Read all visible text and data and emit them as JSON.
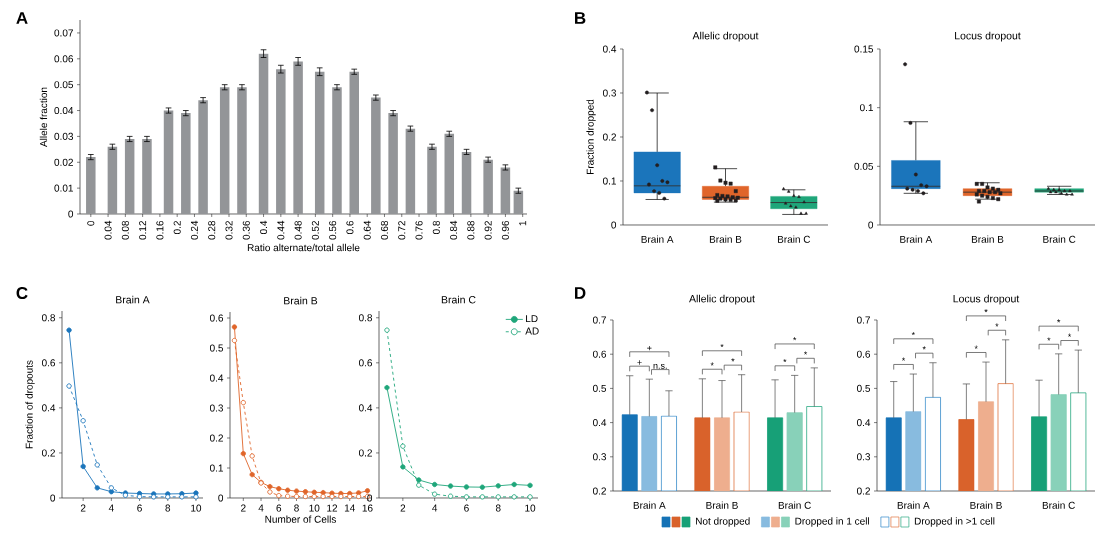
{
  "chart_data": [
    {
      "type": "bar",
      "annotations": [
        "A"
      ],
      "xlabel": "Ratio alternate/total allele",
      "ylabel": "Allele fraction",
      "color": "#939598",
      "x": [
        0,
        0.05,
        0.09,
        0.13,
        0.18,
        0.22,
        0.26,
        0.31,
        0.35,
        0.4,
        0.44,
        0.48,
        0.53,
        0.57,
        0.61,
        0.66,
        0.7,
        0.74,
        0.79,
        0.83,
        0.87,
        0.92,
        0.96,
        0.99
      ],
      "values": [
        0.022,
        0.026,
        0.029,
        0.029,
        0.04,
        0.039,
        0.044,
        0.049,
        0.049,
        0.062,
        0.056,
        0.059,
        0.055,
        0.049,
        0.055,
        0.045,
        0.039,
        0.033,
        0.026,
        0.031,
        0.024,
        0.021,
        0.018,
        0.009
      ],
      "errors": [
        0.001,
        0.001,
        0.001,
        0.001,
        0.001,
        0.001,
        0.001,
        0.001,
        0.001,
        0.0015,
        0.0015,
        0.0015,
        0.0015,
        0.001,
        0.001,
        0.001,
        0.001,
        0.001,
        0.001,
        0.001,
        0.001,
        0.001,
        0.001,
        0.001
      ],
      "xlim": [
        -0.025,
        1.01
      ],
      "ylim": [
        0,
        0.075
      ],
      "xticks": [
        0,
        0.04,
        0.08,
        0.12,
        0.16,
        0.2,
        0.24,
        0.28,
        0.32,
        0.36,
        0.4,
        0.44,
        0.48,
        0.52,
        0.56,
        0.6,
        0.64,
        0.68,
        0.72,
        0.76,
        0.8,
        0.84,
        0.88,
        0.92,
        0.96,
        1
      ],
      "yticks": [
        0,
        0.01,
        0.02,
        0.03,
        0.04,
        0.05,
        0.06,
        0.07
      ]
    },
    {
      "type": "box",
      "annotations": [
        "B"
      ],
      "title": "Allelic dropout",
      "ylabel": "Fraction dropped",
      "categories": [
        "Brain A",
        "Brain B",
        "Brain C"
      ],
      "colors": [
        "#1b75bb",
        "#e0652a",
        "#1fa67a"
      ],
      "boxes": [
        {
          "low": 0.058,
          "q1": 0.073,
          "median": 0.089,
          "q3": 0.166,
          "high": 0.3
        },
        {
          "low": 0.052,
          "q1": 0.058,
          "median": 0.063,
          "q3": 0.088,
          "high": 0.128
        },
        {
          "low": 0.024,
          "q1": 0.037,
          "median": 0.051,
          "q3": 0.065,
          "high": 0.08
        }
      ],
      "ylim": [
        0,
        0.4
      ],
      "yticks": [
        0,
        0.1,
        0.2,
        0.3,
        0.4
      ],
      "series": [
        {
          "type": "scatter",
          "marker": "circle",
          "color": "#231f20",
          "x": [
            "Brain A",
            "Brain A",
            "Brain A",
            "Brain A",
            "Brain A",
            "Brain A",
            "Brain A",
            "Brain A",
            "Brain A"
          ],
          "values": [
            0.301,
            0.261,
            0.136,
            0.1,
            0.097,
            0.092,
            0.077,
            0.073,
            0.06
          ]
        },
        {
          "type": "scatter",
          "marker": "square",
          "color": "#231f20",
          "x": [
            "Brain B",
            "Brain B",
            "Brain B",
            "Brain B",
            "Brain B",
            "Brain B",
            "Brain B",
            "Brain B",
            "Brain B",
            "Brain B",
            "Brain B",
            "Brain B",
            "Brain B",
            "Brain B",
            "Brain B",
            "Brain B"
          ],
          "values": [
            0.131,
            0.101,
            0.096,
            0.094,
            0.077,
            0.068,
            0.066,
            0.065,
            0.063,
            0.062,
            0.061,
            0.06,
            0.058,
            0.057,
            0.056,
            0.055
          ]
        },
        {
          "type": "scatter",
          "marker": "triangle",
          "color": "#231f20",
          "x": [
            "Brain C",
            "Brain C",
            "Brain C",
            "Brain C",
            "Brain C",
            "Brain C",
            "Brain C",
            "Brain C",
            "Brain C",
            "Brain C"
          ],
          "values": [
            0.082,
            0.076,
            0.066,
            0.064,
            0.052,
            0.049,
            0.043,
            0.04,
            0.026,
            0.026
          ]
        }
      ]
    },
    {
      "type": "box",
      "title": "Locus dropout",
      "categories": [
        "Brain A",
        "Brain B",
        "Brain C"
      ],
      "colors": [
        "#1b75bb",
        "#e0652a",
        "#1fa67a"
      ],
      "boxes": [
        {
          "low": 0.027,
          "q1": 0.031,
          "median": 0.033,
          "q3": 0.055,
          "high": 0.088
        },
        {
          "low": 0.022,
          "q1": 0.025,
          "median": 0.028,
          "q3": 0.031,
          "high": 0.036
        },
        {
          "low": 0.026,
          "q1": 0.028,
          "median": 0.029,
          "q3": 0.031,
          "high": 0.033
        }
      ],
      "ylim": [
        0,
        0.15
      ],
      "yticks": [
        0,
        0.05,
        0.1,
        0.15
      ],
      "series": [
        {
          "type": "scatter",
          "marker": "circle",
          "color": "#231f20",
          "x": [
            "Brain A",
            "Brain A",
            "Brain A",
            "Brain A",
            "Brain A",
            "Brain A",
            "Brain A",
            "Brain A",
            "Brain A"
          ],
          "values": [
            0.137,
            0.087,
            0.043,
            0.034,
            0.033,
            0.031,
            0.03,
            0.029,
            0.027
          ]
        },
        {
          "type": "scatter",
          "marker": "square",
          "color": "#231f20",
          "x": [
            "Brain B",
            "Brain B",
            "Brain B",
            "Brain B",
            "Brain B",
            "Brain B",
            "Brain B",
            "Brain B",
            "Brain B",
            "Brain B",
            "Brain B",
            "Brain B",
            "Brain B",
            "Brain B",
            "Brain B",
            "Brain B"
          ],
          "values": [
            0.035,
            0.035,
            0.032,
            0.031,
            0.03,
            0.029,
            0.029,
            0.028,
            0.028,
            0.027,
            0.026,
            0.025,
            0.024,
            0.023,
            0.022,
            0.02
          ]
        },
        {
          "type": "scatter",
          "marker": "triangle",
          "color": "#231f20",
          "x": [
            "Brain C",
            "Brain C",
            "Brain C",
            "Brain C",
            "Brain C",
            "Brain C",
            "Brain C",
            "Brain C",
            "Brain C",
            "Brain C"
          ],
          "values": [
            0.031,
            0.03,
            0.03,
            0.029,
            0.029,
            0.028,
            0.028,
            0.027,
            0.026,
            0.026
          ]
        }
      ]
    },
    {
      "type": "line",
      "annotations": [
        "C"
      ],
      "title": "Brain A",
      "ylabel": "Fraction of dropouts",
      "x": [
        1,
        2,
        3,
        4,
        5,
        6,
        7,
        8,
        9,
        10
      ],
      "series": [
        {
          "color": "#1b75bb",
          "marker": "circle",
          "line_style": "solid",
          "values": [
            0.745,
            0.14,
            0.045,
            0.028,
            0.022,
            0.02,
            0.018,
            0.018,
            0.019,
            0.022
          ]
        },
        {
          "color": "#1b75bb",
          "marker": "circle",
          "line_style": "dashed",
          "values": [
            0.497,
            0.343,
            0.147,
            0.045,
            0.012,
            0.006,
            0.005,
            0.005,
            0.005,
            0.005
          ]
        }
      ],
      "xlim": [
        0.5,
        10.5
      ],
      "ylim": [
        0,
        0.83
      ],
      "xticks": [
        2,
        4,
        6,
        8,
        10
      ],
      "yticks": [
        0,
        0.2,
        0.4,
        0.6,
        0.8
      ]
    },
    {
      "type": "line",
      "title": "Brain B",
      "xlabel": "Number of Cells",
      "x": [
        1,
        2,
        3,
        4,
        5,
        6,
        7,
        8,
        9,
        10,
        11,
        12,
        13,
        14,
        15,
        16
      ],
      "series": [
        {
          "color": "#e0652a",
          "marker": "circle",
          "line_style": "solid",
          "values": [
            0.57,
            0.148,
            0.078,
            0.052,
            0.038,
            0.031,
            0.026,
            0.023,
            0.021,
            0.019,
            0.018,
            0.016,
            0.015,
            0.015,
            0.017,
            0.024
          ]
        },
        {
          "color": "#e0652a",
          "marker": "circle",
          "line_style": "dashed",
          "values": [
            0.525,
            0.318,
            0.14,
            0.05,
            0.02,
            0.008,
            0.006,
            0.005,
            0.005,
            0.005,
            0.005,
            0.005,
            0.005,
            0.005,
            0.005,
            0.005
          ]
        }
      ],
      "xlim": [
        0.5,
        16.4
      ],
      "ylim": [
        0,
        0.62
      ],
      "xticks": [
        2,
        4,
        6,
        8,
        10,
        12,
        14,
        16
      ],
      "yticks": [
        0,
        0.1,
        0.2,
        0.3,
        0.4,
        0.5,
        0.6
      ]
    },
    {
      "type": "line",
      "title": "Brain C",
      "legend": "top right",
      "x": [
        1,
        2,
        3,
        4,
        5,
        6,
        7,
        8,
        9,
        10
      ],
      "series": [
        {
          "name": "LD",
          "color": "#1fa67a",
          "marker": "circle",
          "line_style": "solid",
          "values": [
            0.49,
            0.138,
            0.08,
            0.06,
            0.053,
            0.049,
            0.048,
            0.054,
            0.06,
            0.056
          ]
        },
        {
          "name": "AD",
          "color": "#1fa67a",
          "marker": "circle",
          "line_style": "dashed",
          "values": [
            0.745,
            0.23,
            0.057,
            0.017,
            0.008,
            0.005,
            0.005,
            0.005,
            0.005,
            0.005
          ]
        }
      ],
      "xlim": [
        0.5,
        10.5
      ],
      "ylim": [
        0,
        0.83
      ],
      "xticks": [
        2,
        4,
        6,
        8,
        10
      ],
      "yticks": [
        0,
        0.2,
        0.4,
        0.6,
        0.8
      ]
    },
    {
      "type": "bar",
      "annotations": [
        "D",
        "+",
        "n.s.",
        "+",
        "*",
        "*",
        "*",
        "*",
        "*",
        "*"
      ],
      "title": "Allelic dropout",
      "categories": [
        "Brain A",
        "Brain B",
        "Brain C"
      ],
      "series": [
        {
          "colors": [
            "#1572b6",
            "#d9622b",
            "#17a077"
          ],
          "values": [
            0.423,
            0.414,
            0.414
          ],
          "errors": [
            [
              0.423,
              0.537
            ],
            [
              0.414,
              0.528
            ],
            [
              0.414,
              0.525
            ]
          ]
        },
        {
          "colors": [
            "#88bbdf",
            "#eeae8e",
            "#88d1b9"
          ],
          "values": [
            0.418,
            0.414,
            0.429
          ],
          "errors": [
            [
              0.418,
              0.527
            ],
            [
              0.414,
              0.523
            ],
            [
              0.429,
              0.538
            ]
          ]
        },
        {
          "colors": [
            "#2e86c8",
            "#e0743f",
            "#2aa881"
          ],
          "values": [
            0.419,
            0.431,
            0.447
          ],
          "errors": [
            [
              0.419,
              0.493
            ],
            [
              0.431,
              0.54
            ],
            [
              0.447,
              0.56
            ]
          ]
        }
      ],
      "ylim": [
        0.2,
        0.7
      ],
      "yticks": [
        0.2,
        0.3,
        0.4,
        0.5,
        0.6,
        0.7
      ]
    },
    {
      "type": "bar",
      "annotations": [
        "*",
        "*",
        "*",
        "*",
        "*",
        "*",
        "*",
        "*",
        "*"
      ],
      "title": "Locus dropout",
      "legend": "bottom",
      "categories": [
        "Brain A",
        "Brain B",
        "Brain C"
      ],
      "series": [
        {
          "name": "Not dropped",
          "colors": [
            "#1572b6",
            "#d9622b",
            "#17a077"
          ],
          "values": [
            0.414,
            0.409,
            0.417
          ],
          "errors": [
            [
              0.414,
              0.52
            ],
            [
              0.409,
              0.513
            ],
            [
              0.417,
              0.524
            ]
          ]
        },
        {
          "name": "Dropped in 1 cell",
          "colors": [
            "#88bbdf",
            "#eeae8e",
            "#88d1b9"
          ],
          "values": [
            0.432,
            0.461,
            0.482
          ],
          "errors": [
            [
              0.432,
              0.542
            ],
            [
              0.461,
              0.577
            ],
            [
              0.482,
              0.601
            ]
          ]
        },
        {
          "name": "Dropped in >1 cell",
          "colors": [
            "#2e86c8",
            "#e0743f",
            "#2aa881"
          ],
          "values": [
            0.474,
            0.514,
            0.487
          ],
          "errors": [
            [
              0.474,
              0.575
            ],
            [
              0.514,
              0.642
            ],
            [
              0.487,
              0.612
            ]
          ]
        }
      ],
      "ylim": [
        0.2,
        0.7
      ],
      "yticks": [
        0.2,
        0.3,
        0.4,
        0.5,
        0.6,
        0.7
      ]
    }
  ]
}
